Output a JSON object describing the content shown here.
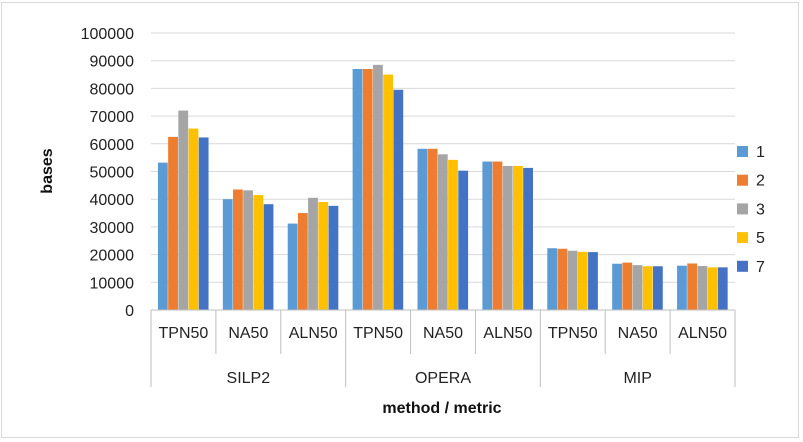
{
  "chart_data": {
    "type": "bar",
    "title": "",
    "xlabel": "method / metric",
    "ylabel": "bases",
    "ylim": [
      0,
      100000
    ],
    "yticks": [
      0,
      10000,
      20000,
      30000,
      40000,
      50000,
      60000,
      70000,
      80000,
      90000,
      100000
    ],
    "grid": true,
    "legend_position": "right",
    "groups": [
      "SILP2",
      "OPERA",
      "MIP"
    ],
    "categories": [
      "TPN50",
      "NA50",
      "ALN50",
      "TPN50",
      "NA50",
      "ALN50",
      "TPN50",
      "NA50",
      "ALN50"
    ],
    "series": [
      {
        "name": "1",
        "color": "#5b9bd5",
        "values": [
          53200,
          40000,
          31200,
          87000,
          58200,
          53600,
          22300,
          16700,
          16000
        ]
      },
      {
        "name": "2",
        "color": "#ed7d31",
        "values": [
          62500,
          43500,
          35000,
          87000,
          58200,
          53600,
          22100,
          17100,
          16800
        ]
      },
      {
        "name": "3",
        "color": "#a5a5a5",
        "values": [
          72000,
          43200,
          40500,
          88500,
          56200,
          52000,
          21400,
          16200,
          15900
        ]
      },
      {
        "name": "5",
        "color": "#ffc000",
        "values": [
          65500,
          41500,
          39000,
          85000,
          54200,
          52000,
          21000,
          15800,
          15400
        ]
      },
      {
        "name": "7",
        "color": "#4472c4",
        "values": [
          62300,
          38200,
          37600,
          79500,
          50300,
          51300,
          20900,
          15800,
          15400
        ]
      }
    ]
  }
}
